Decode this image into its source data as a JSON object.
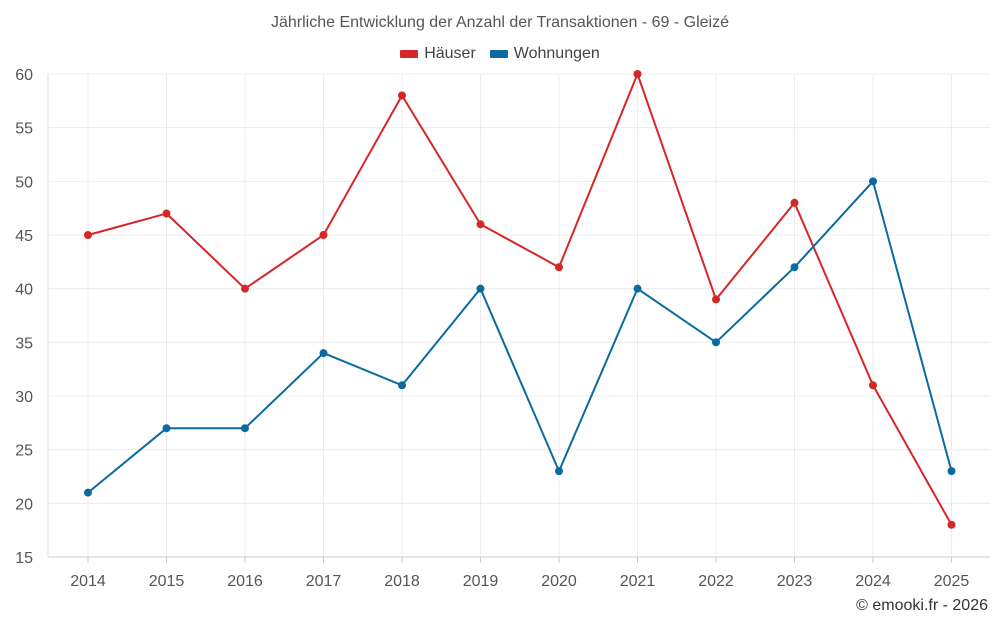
{
  "chart_data": {
    "type": "line",
    "title": "Jährliche Entwicklung der Anzahl der Transaktionen - 69 - Gleizé",
    "xlabel": "",
    "ylabel": "",
    "x": [
      "2014",
      "2015",
      "2016",
      "2017",
      "2018",
      "2019",
      "2020",
      "2021",
      "2022",
      "2023",
      "2024",
      "2025"
    ],
    "ylim": [
      15,
      60
    ],
    "yticks": [
      15,
      20,
      25,
      30,
      35,
      40,
      45,
      50,
      55,
      60
    ],
    "grid": true,
    "legend": "top-center",
    "series": [
      {
        "name": "Häuser",
        "color": "#d62728",
        "values": [
          45,
          47,
          40,
          45,
          58,
          46,
          42,
          60,
          39,
          48,
          31,
          18
        ]
      },
      {
        "name": "Wohnungen",
        "color": "#0a6aa1",
        "values": [
          21,
          27,
          27,
          34,
          31,
          40,
          23,
          40,
          35,
          42,
          50,
          23
        ]
      }
    ]
  },
  "credit": "© emooki.fr - 2026"
}
